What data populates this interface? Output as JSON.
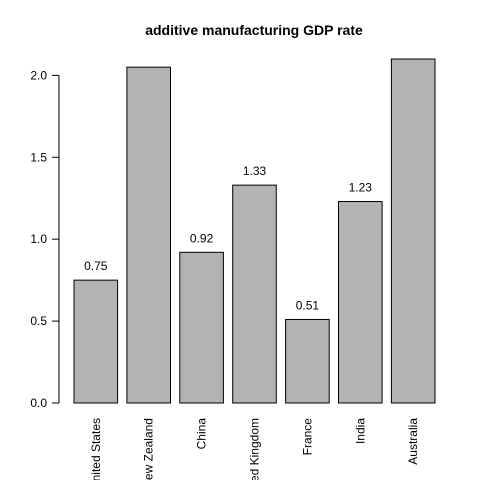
{
  "chart_data": {
    "type": "bar",
    "title": "additive manufacturing GDP rate",
    "xlabel": "",
    "ylabel": "",
    "categories": [
      "United States",
      "New Zealand",
      "China",
      "United Kingdom",
      "France",
      "India",
      "Australia"
    ],
    "values": [
      0.75,
      2.05,
      0.92,
      1.33,
      0.51,
      1.23,
      2.1
    ],
    "data_labels": [
      "0.75",
      "",
      "0.92",
      "1.33",
      "0.51",
      "1.23",
      ""
    ],
    "yticks": [
      "0.0",
      "0.5",
      "1.0",
      "1.5",
      "2.0"
    ],
    "ylim": [
      0,
      2.1
    ],
    "grid": false,
    "bar_color": "#b3b3b3",
    "bar_border": "#000000"
  }
}
